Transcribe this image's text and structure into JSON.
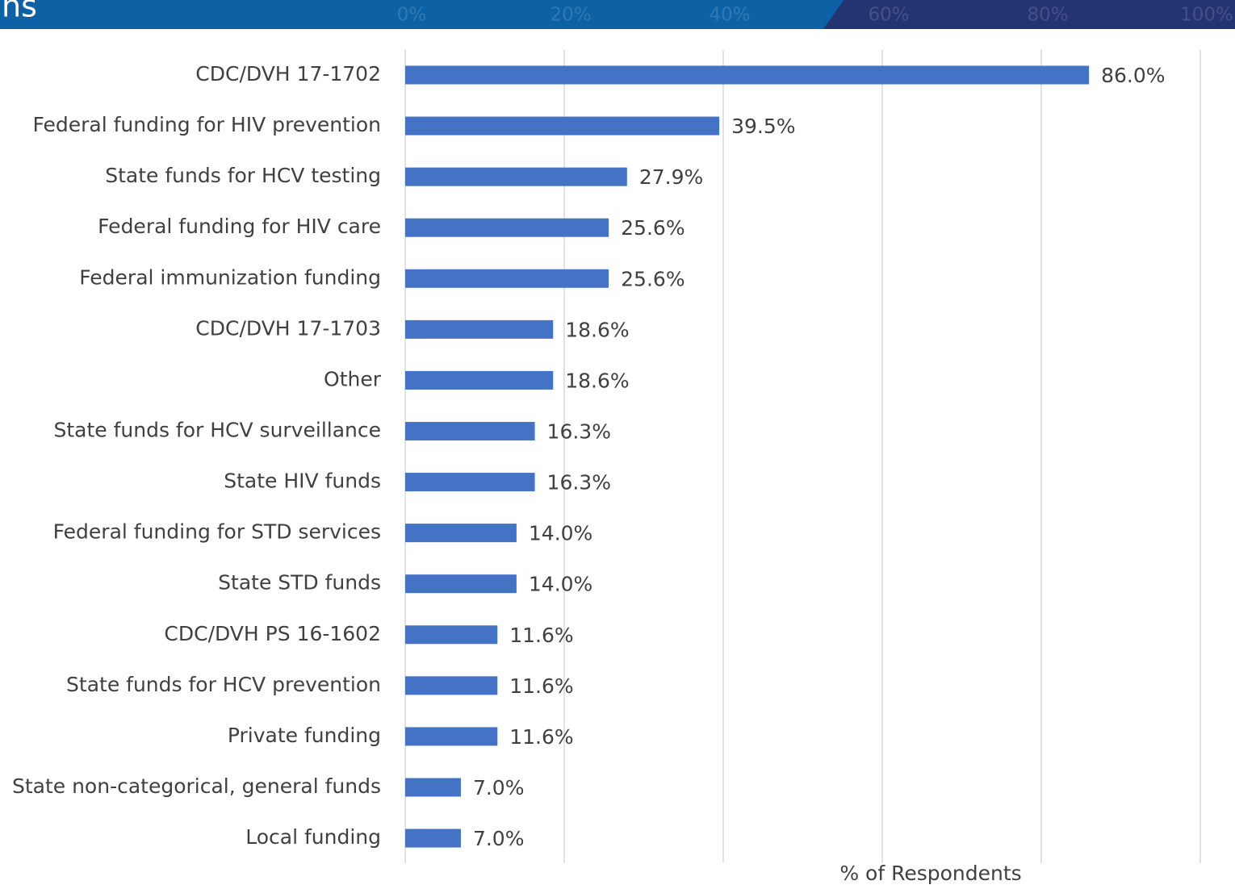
{
  "chart_data": {
    "type": "barh",
    "title": "ns",
    "categories": [
      "CDC/DVH 17-1702",
      "Federal funding for HIV prevention",
      "State funds for HCV testing",
      "Federal funding for HIV care",
      "Federal immunization funding",
      "CDC/DVH 17-1703",
      "Other",
      "State funds for HCV surveillance",
      "State HIV funds",
      "Federal funding for STD services",
      "State STD funds",
      "CDC/DVH PS 16-1602",
      "State funds for HCV prevention",
      "Private funding",
      "State non-categorical, general funds",
      "Local funding"
    ],
    "values": [
      86.0,
      39.5,
      27.9,
      25.6,
      25.6,
      18.6,
      18.6,
      16.3,
      16.3,
      14.0,
      14.0,
      11.6,
      11.6,
      11.6,
      7.0,
      7.0
    ],
    "value_labels": [
      "86.0%",
      "39.5%",
      "27.9%",
      "25.6%",
      "25.6%",
      "18.6%",
      "18.6%",
      "16.3%",
      "16.3%",
      "14.0%",
      "14.0%",
      "11.6%",
      "11.6%",
      "11.6%",
      "7.0%",
      "7.0%"
    ],
    "color": "#4472c4",
    "x_label": "% of Respondents",
    "xlim": [
      0,
      100
    ],
    "xticks": [
      {
        "value": 0,
        "label": "0%"
      },
      {
        "value": 20,
        "label": "20%"
      },
      {
        "value": 40,
        "label": "40%"
      },
      {
        "value": 60,
        "label": "60%"
      },
      {
        "value": 80,
        "label": "80%"
      },
      {
        "value": 100,
        "label": "100%"
      }
    ],
    "grid": true
  }
}
